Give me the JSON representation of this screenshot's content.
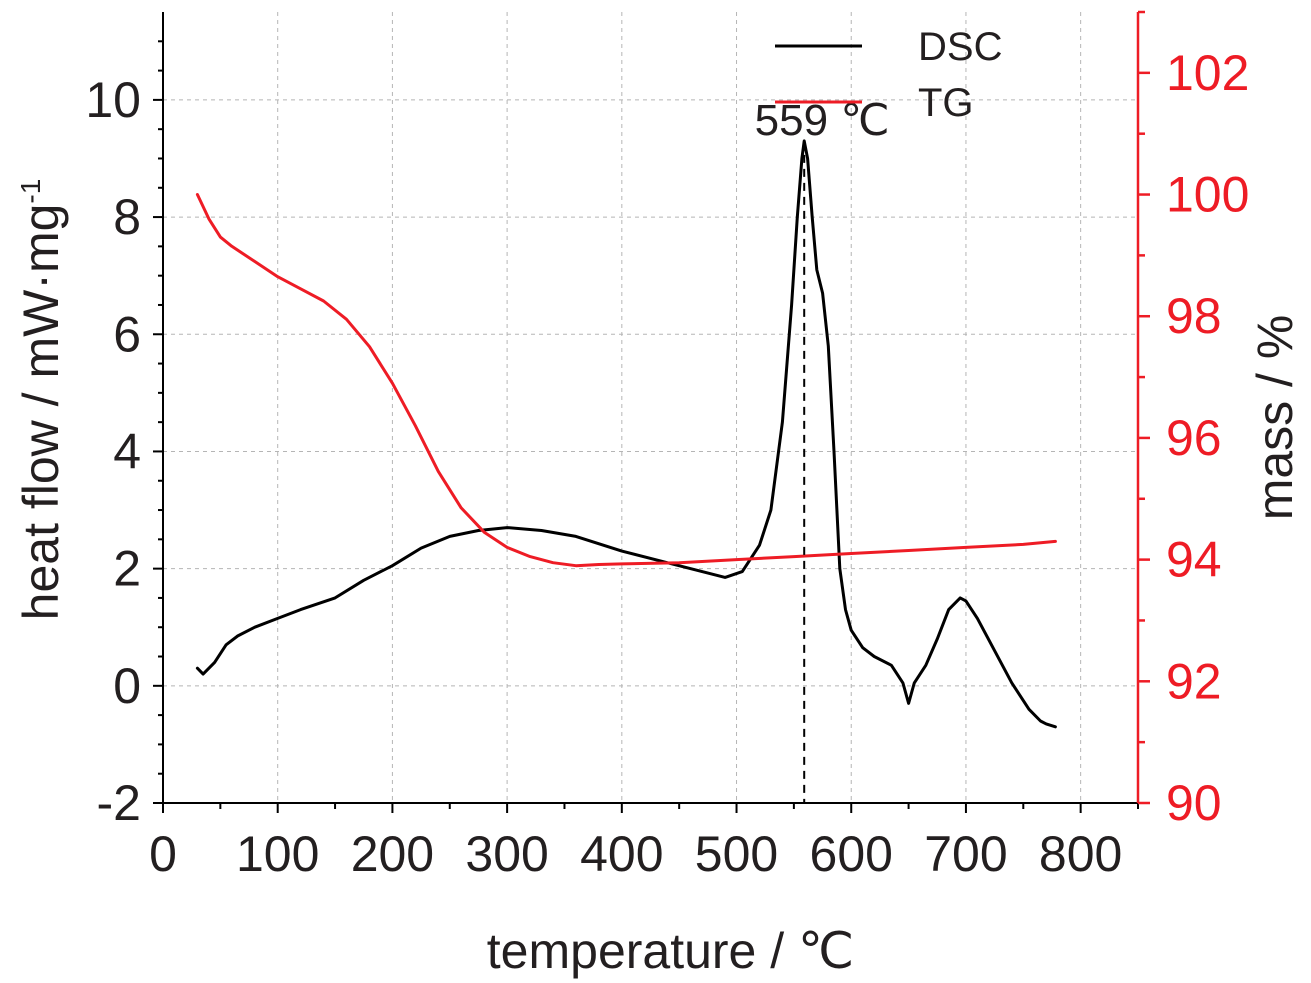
{
  "chart_data": {
    "type": "line",
    "xlabel": "temperature / ℃",
    "ylabel_left": "heat flow / mW·mg",
    "ylabel_left_sup": "-1",
    "ylabel_right": "mass / %",
    "xlim": [
      0,
      850
    ],
    "ylim_left": [
      -2,
      11.5
    ],
    "ylim_right": [
      90,
      103
    ],
    "x_ticks": [
      0,
      100,
      200,
      300,
      400,
      500,
      600,
      700,
      800
    ],
    "y_left_ticks": [
      -2,
      0,
      2,
      4,
      6,
      8,
      10
    ],
    "y_right_ticks": [
      90,
      92,
      94,
      96,
      98,
      100,
      102
    ],
    "grid": true,
    "legend_position": "top-right",
    "annotation": {
      "text": "559 ℃",
      "x": 559
    },
    "series": [
      {
        "name": "DSC",
        "axis": "left",
        "color": "#000000",
        "x": [
          30,
          35,
          45,
          55,
          65,
          80,
          100,
          120,
          150,
          175,
          200,
          225,
          250,
          275,
          300,
          330,
          360,
          400,
          440,
          470,
          490,
          505,
          520,
          530,
          540,
          548,
          553,
          557,
          559,
          562,
          566,
          570,
          575,
          580,
          585,
          590,
          595,
          600,
          610,
          620,
          635,
          645,
          650,
          655,
          665,
          675,
          685,
          695,
          700,
          710,
          725,
          740,
          755,
          765,
          770,
          778
        ],
        "y": [
          0.3,
          0.2,
          0.4,
          0.7,
          0.85,
          1.0,
          1.15,
          1.3,
          1.5,
          1.8,
          2.05,
          2.35,
          2.55,
          2.65,
          2.7,
          2.65,
          2.55,
          2.3,
          2.1,
          1.95,
          1.85,
          1.95,
          2.4,
          3.0,
          4.5,
          6.5,
          8.0,
          9.0,
          9.3,
          9.0,
          8.0,
          7.1,
          6.7,
          5.8,
          4.0,
          2.0,
          1.3,
          0.95,
          0.65,
          0.5,
          0.35,
          0.05,
          -0.3,
          0.05,
          0.35,
          0.8,
          1.3,
          1.5,
          1.45,
          1.15,
          0.6,
          0.05,
          -0.4,
          -0.6,
          -0.65,
          -0.7
        ]
      },
      {
        "name": "TG",
        "axis": "right",
        "color": "#ee1c25",
        "x": [
          30,
          40,
          50,
          60,
          80,
          100,
          120,
          140,
          160,
          180,
          200,
          220,
          240,
          260,
          280,
          300,
          320,
          340,
          360,
          380,
          400,
          450,
          500,
          550,
          600,
          650,
          700,
          750,
          778
        ],
        "y": [
          100.0,
          99.6,
          99.3,
          99.15,
          98.9,
          98.65,
          98.45,
          98.25,
          97.95,
          97.5,
          96.9,
          96.2,
          95.45,
          94.85,
          94.45,
          94.2,
          94.05,
          93.95,
          93.9,
          93.92,
          93.93,
          93.95,
          94.0,
          94.05,
          94.1,
          94.15,
          94.2,
          94.25,
          94.3
        ]
      }
    ]
  }
}
